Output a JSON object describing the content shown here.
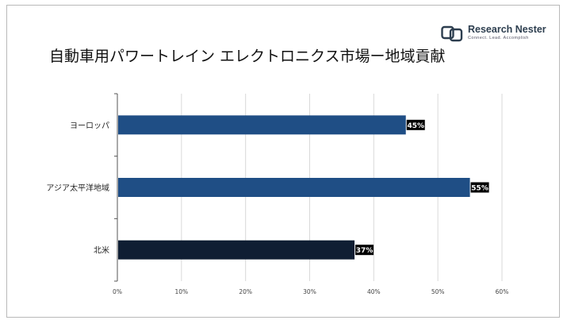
{
  "title": "自動車用パワートレイン エレクトロニクス市場ー地域貢献",
  "logo": {
    "name": "Research Nester",
    "tagline": "Connect. Lead. Accomplish"
  },
  "chart_data": {
    "type": "bar",
    "orientation": "horizontal",
    "categories": [
      "ヨーロッパ",
      "アジア太平洋地域",
      "北米"
    ],
    "values": [
      45,
      55,
      37
    ],
    "value_labels": [
      "45%",
      "55%",
      "37%"
    ],
    "bar_colors": [
      "#1f4e85",
      "#1f4e85",
      "#0f1e33"
    ],
    "xlim": [
      0,
      60
    ],
    "xticks": [
      0,
      10,
      20,
      30,
      40,
      50,
      60
    ],
    "xtick_labels": [
      "0%",
      "10%",
      "20%",
      "30%",
      "40%",
      "50%",
      "60%"
    ],
    "grid": true,
    "xlabel": "",
    "ylabel": ""
  }
}
